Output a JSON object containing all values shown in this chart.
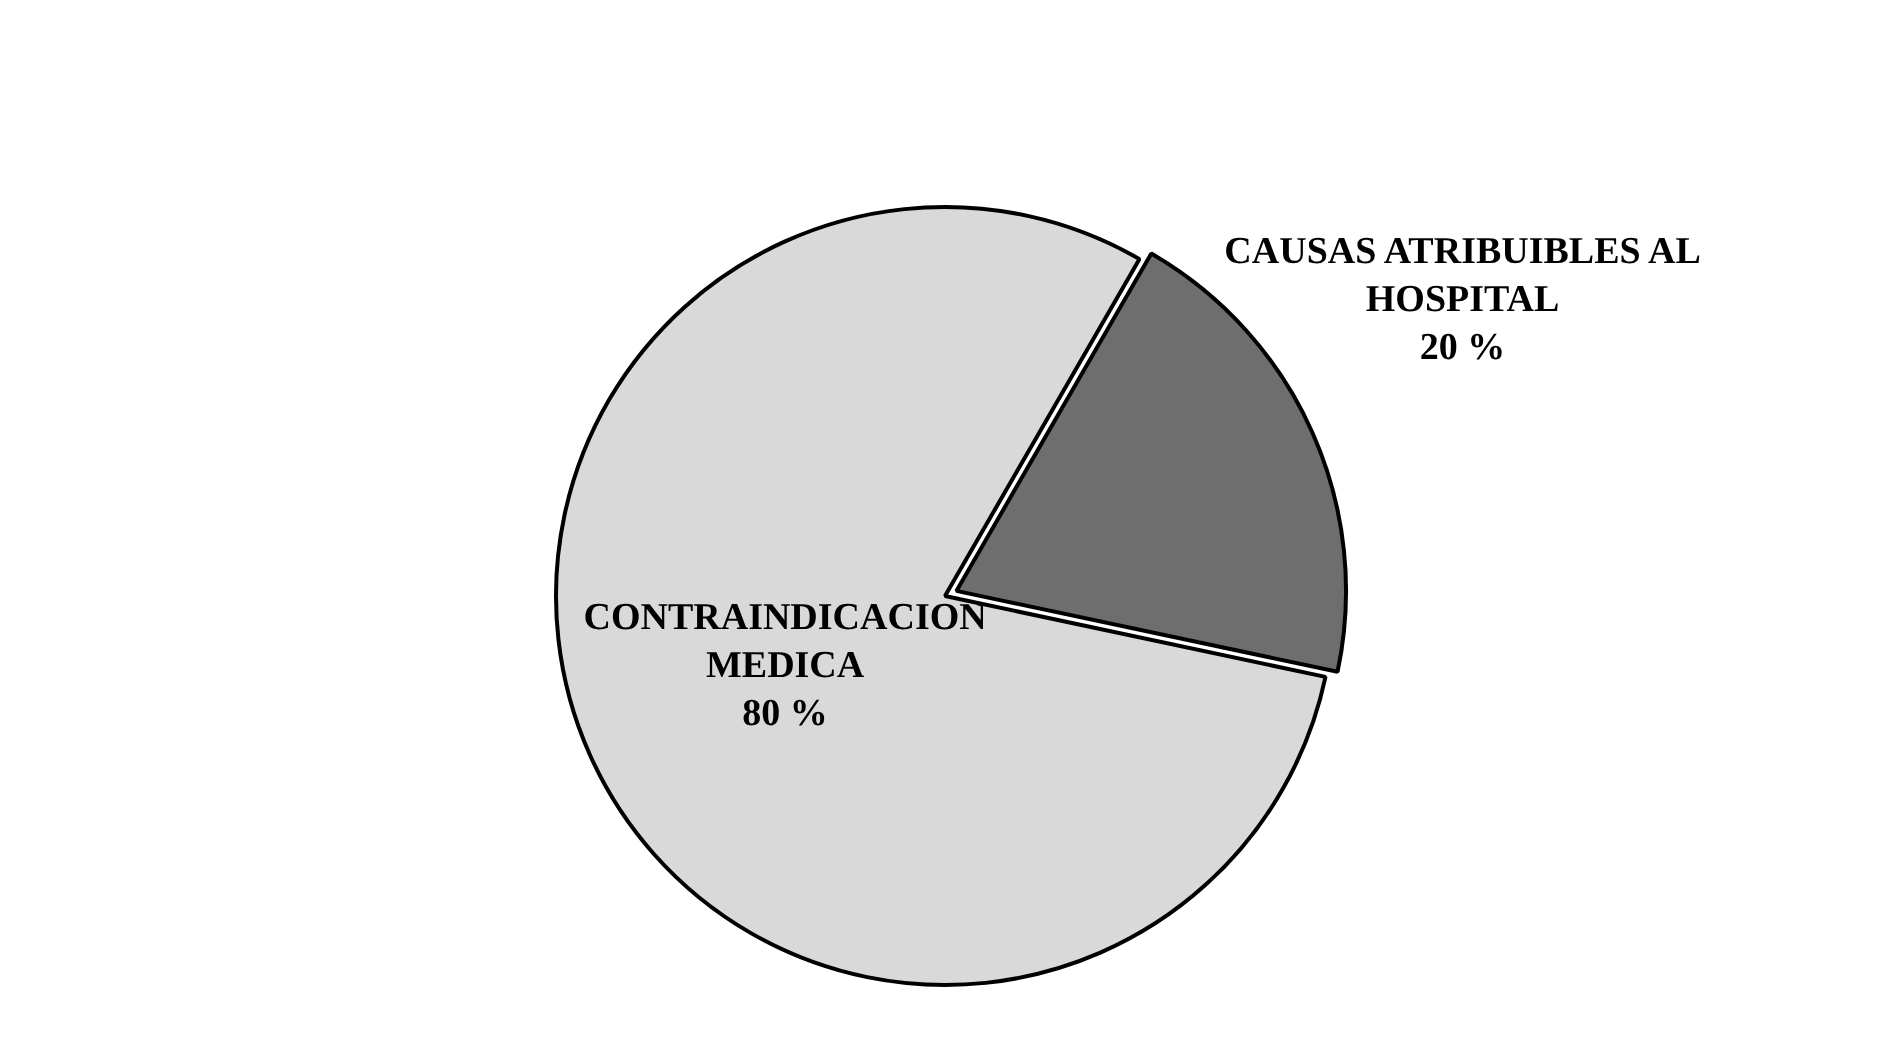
{
  "chart_data": {
    "type": "pie",
    "categories": [
      "CONTRAINDICACION MEDICA",
      "CAUSAS ATRIBUIBLES AL HOSPITAL"
    ],
    "values": [
      80,
      20
    ],
    "value_labels": [
      "80 %",
      "20 %"
    ],
    "colors": [
      "#d9d9d9",
      "#6e6e6e"
    ],
    "legend": false
  }
}
